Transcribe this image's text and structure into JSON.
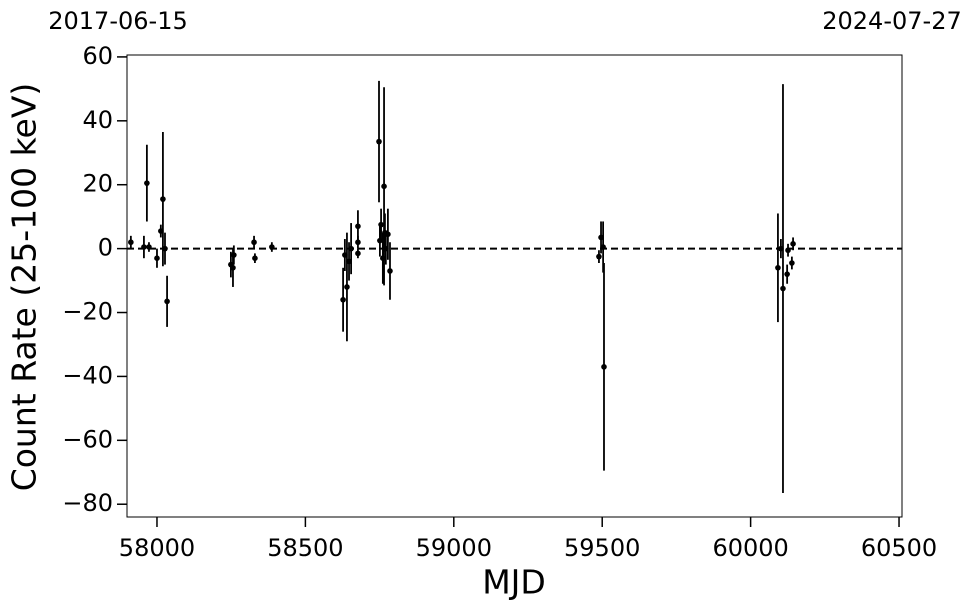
{
  "chart_data": {
    "type": "errorbar",
    "top_left_label": "2017-06-15",
    "top_right_label": "2024-07-27",
    "xlabel": "MJD",
    "ylabel": "Count Rate (25-100 keV)",
    "xlim": [
      57899,
      60510
    ],
    "ylim": [
      -84,
      60.6
    ],
    "xticks": [
      58000,
      58500,
      59000,
      59500,
      60000,
      60500
    ],
    "yticks": [
      {
        "value": -80,
        "label": "−80"
      },
      {
        "value": -60,
        "label": "−60"
      },
      {
        "value": -40,
        "label": "−40"
      },
      {
        "value": -20,
        "label": "−20"
      },
      0,
      20,
      40,
      60
    ],
    "hline": 0,
    "series": [
      {
        "color": "#000000",
        "x": [
          57912,
          57956,
          57966,
          57973,
          58000,
          58013,
          58020,
          58027,
          58034,
          58249,
          58256,
          58259,
          58327,
          58330,
          58387,
          58627,
          58633,
          58640,
          58647,
          58654,
          58677,
          58677,
          58677,
          58748,
          58751,
          58755,
          58761,
          58765,
          58768,
          58771,
          58778,
          58785,
          59489,
          59496,
          59503,
          59506,
          60092,
          60102,
          60109,
          60123,
          60126,
          60139,
          60143
        ],
        "values": [
          2,
          0.5,
          20.5,
          0.5,
          -3,
          5.5,
          15.5,
          0,
          -16.5,
          -5,
          -6,
          -2,
          2,
          -3,
          0.5,
          -16,
          -2,
          -12,
          -4,
          0,
          7,
          -1.5,
          2,
          33.5,
          2.5,
          7.5,
          -3,
          19.5,
          5,
          0,
          4.5,
          -7,
          -2.5,
          3.5,
          0.5,
          -37,
          -6,
          0,
          -12.5,
          -8,
          -0.5,
          -4.5,
          1.5
        ],
        "errors": [
          2,
          3.5,
          12,
          1.5,
          3,
          2,
          21,
          5,
          8,
          4,
          6,
          3,
          2,
          1.5,
          1.5,
          10,
          5,
          17,
          6,
          8,
          5,
          1.5,
          2,
          19,
          5,
          5,
          8,
          31,
          6,
          5,
          8,
          9,
          2,
          5,
          8,
          32.5,
          17,
          3,
          64,
          3,
          2,
          2,
          2
        ]
      }
    ]
  }
}
